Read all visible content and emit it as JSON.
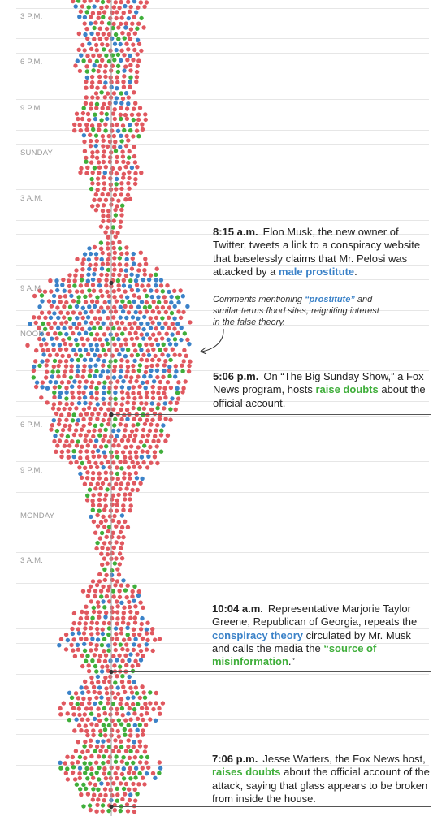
{
  "colors": {
    "red": "#e0585f",
    "blue": "#3b82c8",
    "green": "#3fae3a",
    "grid": "#e6e6e6",
    "axis": "#9e9e9e",
    "annotation_line": "#555555"
  },
  "chart_data": {
    "type": "beeswarm",
    "time_labels": [
      "3 P.M.",
      "6 P.M.",
      "9 P.M.",
      "SUNDAY",
      "3 A.M.",
      "9 A.M.",
      "NOON",
      "6 P.M.",
      "9 P.M.",
      "MONDAY",
      "3 A.M."
    ],
    "category_colors": [
      "red",
      "blue",
      "green"
    ],
    "density_profile": [
      {
        "t": 0,
        "half_width": 48,
        "blue_share": 0.15,
        "green_share": 0.2
      },
      {
        "t": 40,
        "half_width": 40,
        "blue_share": 0.18,
        "green_share": 0.15
      },
      {
        "t": 75,
        "half_width": 45,
        "blue_share": 0.15,
        "green_share": 0.2
      },
      {
        "t": 115,
        "half_width": 30,
        "blue_share": 0.1,
        "green_share": 0.1
      },
      {
        "t": 150,
        "half_width": 50,
        "blue_share": 0.1,
        "green_share": 0.15
      },
      {
        "t": 180,
        "half_width": 30,
        "blue_share": 0.08,
        "green_share": 0.1
      },
      {
        "t": 205,
        "half_width": 40,
        "blue_share": 0.05,
        "green_share": 0.15
      },
      {
        "t": 245,
        "half_width": 25,
        "blue_share": 0.05,
        "green_share": 0.08
      },
      {
        "t": 290,
        "half_width": 10,
        "blue_share": 0.0,
        "green_share": 0.05
      },
      {
        "t": 320,
        "half_width": 42,
        "blue_share": 0.15,
        "green_share": 0.12
      },
      {
        "t": 345,
        "half_width": 75,
        "blue_share": 0.25,
        "green_share": 0.1
      },
      {
        "t": 370,
        "half_width": 100,
        "blue_share": 0.35,
        "green_share": 0.1
      },
      {
        "t": 410,
        "half_width": 100,
        "blue_share": 0.3,
        "green_share": 0.12
      },
      {
        "t": 440,
        "half_width": 105,
        "blue_share": 0.3,
        "green_share": 0.12
      },
      {
        "t": 470,
        "half_width": 95,
        "blue_share": 0.2,
        "green_share": 0.12
      },
      {
        "t": 505,
        "half_width": 80,
        "blue_share": 0.08,
        "green_share": 0.1
      },
      {
        "t": 550,
        "half_width": 70,
        "blue_share": 0.08,
        "green_share": 0.12
      },
      {
        "t": 595,
        "half_width": 40,
        "blue_share": 0.05,
        "green_share": 0.08
      },
      {
        "t": 640,
        "half_width": 25,
        "blue_share": 0.05,
        "green_share": 0.1
      },
      {
        "t": 700,
        "half_width": 15,
        "blue_share": 0.03,
        "green_share": 0.1
      },
      {
        "t": 740,
        "half_width": 40,
        "blue_share": 0.15,
        "green_share": 0.1
      },
      {
        "t": 790,
        "half_width": 65,
        "blue_share": 0.25,
        "green_share": 0.12
      },
      {
        "t": 830,
        "half_width": 30,
        "blue_share": 0.1,
        "green_share": 0.15
      },
      {
        "t": 870,
        "half_width": 70,
        "blue_share": 0.1,
        "green_share": 0.2
      },
      {
        "t": 910,
        "half_width": 40,
        "blue_share": 0.05,
        "green_share": 0.2
      },
      {
        "t": 945,
        "half_width": 65,
        "blue_share": 0.1,
        "green_share": 0.35
      },
      {
        "t": 985,
        "half_width": 35,
        "blue_share": 0.05,
        "green_share": 0.25
      },
      {
        "t": 1005,
        "half_width": 28,
        "blue_share": 0.05,
        "green_share": 0.2
      }
    ]
  },
  "annotations": [
    {
      "time": "8:15 a.m.",
      "parts": [
        {
          "text": "Elon Musk, the new owner of Twitter, tweets a link to a conspiracy website that baselessly claims that Mr. Pelosi was attacked by a ",
          "style": ""
        },
        {
          "text": "male prostitute",
          "style": "blue"
        },
        {
          "text": ".",
          "style": ""
        }
      ]
    },
    {
      "time": "5:06 p.m.",
      "parts": [
        {
          "text": "On “The Big Sunday Show,” a Fox News program, hosts ",
          "style": ""
        },
        {
          "text": "raise doubts",
          "style": "green"
        },
        {
          "text": " about the official account.",
          "style": ""
        }
      ]
    },
    {
      "time": "10:04 a.m.",
      "parts": [
        {
          "text": "Representative Marjorie Taylor Greene, Republican of Georgia, repeats the ",
          "style": ""
        },
        {
          "text": "conspiracy theory",
          "style": "blue"
        },
        {
          "text": " circulated by Mr. Musk and calls the media the ",
          "style": ""
        },
        {
          "text": "“source of misinformation",
          "style": "green"
        },
        {
          "text": ".”",
          "style": ""
        }
      ]
    },
    {
      "time": "7:06 p.m.",
      "parts": [
        {
          "text": "Jesse Watters, the Fox News host, ",
          "style": ""
        },
        {
          "text": "raises doubts",
          "style": "green"
        },
        {
          "text": " about the official account of the attack, saying that glass appears to be broken from inside the house.",
          "style": ""
        }
      ]
    }
  ],
  "note": {
    "before": "Comments mentioning ",
    "highlight": "“prostitute”",
    "after": " and similar terms flood sites, reigniting interest in the false theory."
  }
}
